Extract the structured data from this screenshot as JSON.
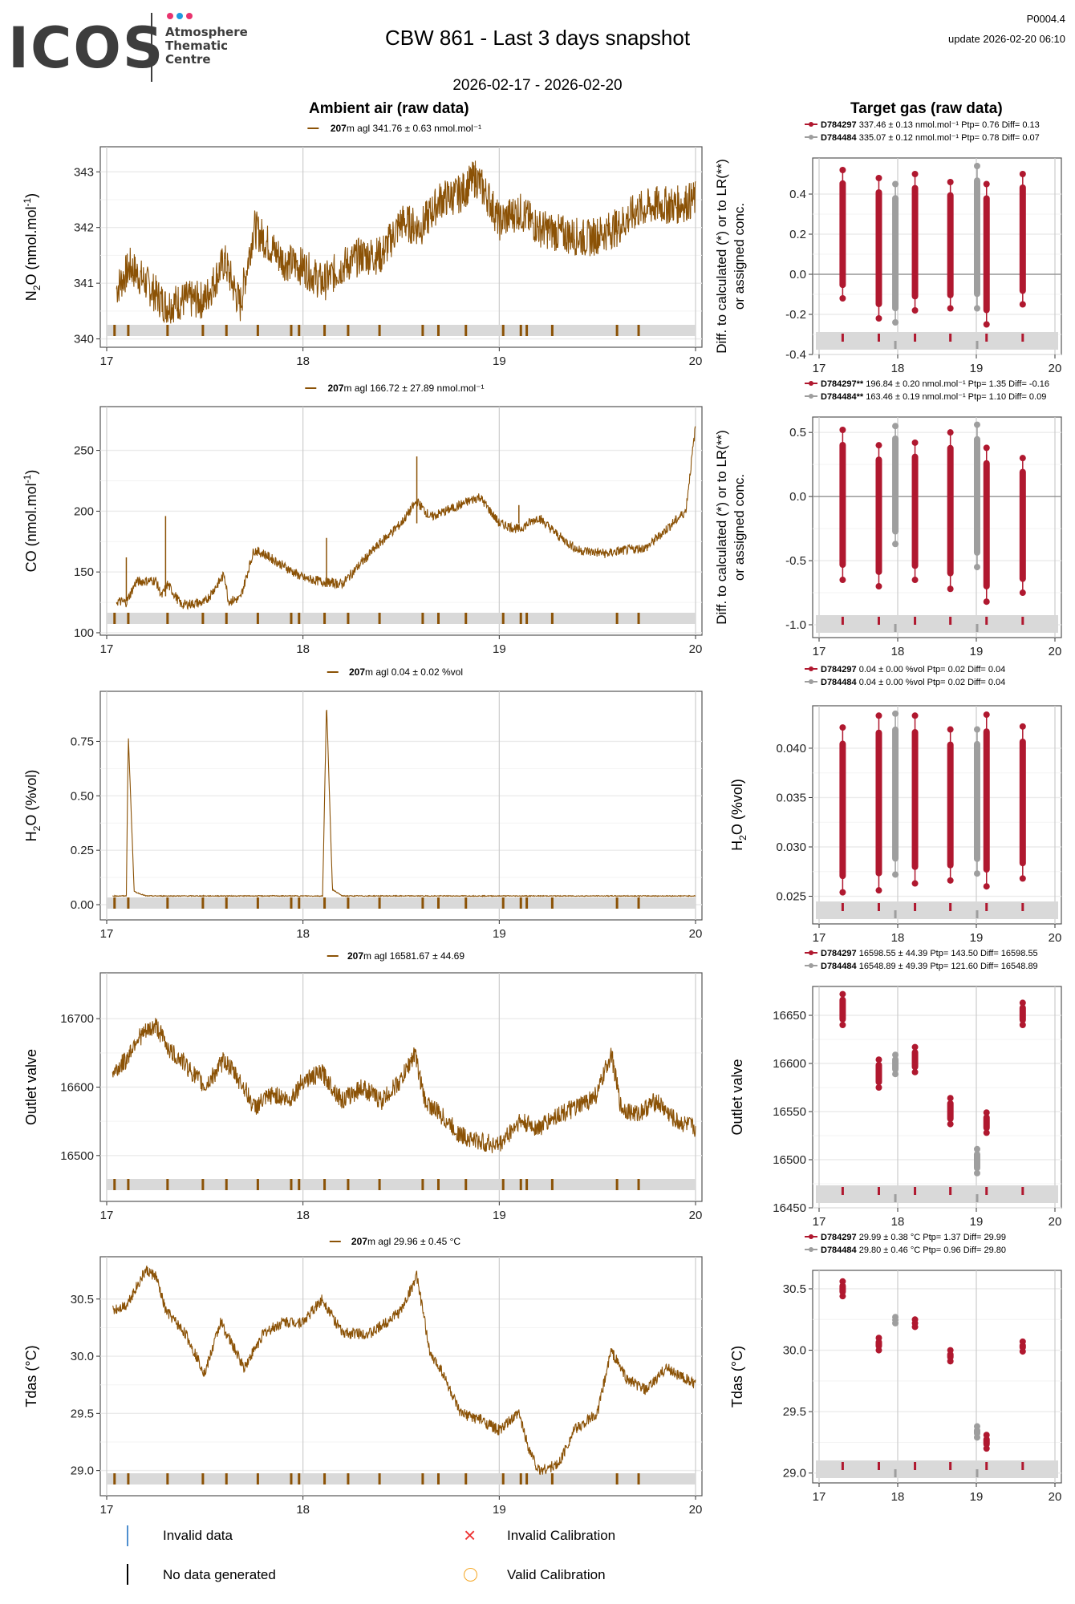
{
  "header": {
    "logo": {
      "name": "ICOS",
      "subtitle_lines": [
        "Atmosphere",
        "Thematic",
        "Centre"
      ],
      "dot_colors": [
        "#e8336e",
        "#1f9ae0",
        "#e8336e"
      ]
    },
    "title": "CBW 861 - Last 3 days snapshot",
    "date_range": "2026-02-17 - 2026-02-20",
    "version": "P0004.4",
    "update": "update  2026-02-20 06:10"
  },
  "columns": {
    "ambient_title": "Ambient air (raw data)",
    "target_title": "Target gas (raw data)"
  },
  "colors": {
    "ambient_series": "#8b5206",
    "target_primary": "#b0182f",
    "target_secondary": "#9e9e9e",
    "flag_band": "#d9d9d9",
    "invalid_data": "#4f8fcf",
    "no_data": "#000000",
    "invalid_calibration": "#ee3333",
    "valid_calibration": "#f5a623"
  },
  "chart_data": [
    {
      "id": "n2o-ambient",
      "type": "line",
      "ylabel": "N2O (nmol.mol-1)",
      "xlabel": "",
      "xlim": [
        17,
        20
      ],
      "ylim": [
        339.85,
        343.45
      ],
      "xticks": [
        "17",
        "18",
        "19",
        "20"
      ],
      "yticks": [
        340,
        341,
        342,
        343
      ],
      "legend": {
        "bold": "207",
        "text": "m agl 341.76 ± 0.63 nmol.mol⁻¹"
      },
      "x": [
        17.05,
        17.12,
        17.2,
        17.3,
        17.4,
        17.5,
        17.6,
        17.68,
        17.75,
        17.8,
        17.9,
        18.0,
        18.1,
        18.2,
        18.3,
        18.4,
        18.5,
        18.6,
        18.7,
        18.8,
        18.88,
        18.95,
        19.0,
        19.1,
        19.2,
        19.3,
        19.45,
        19.6,
        19.7,
        19.8,
        19.9,
        20.0
      ],
      "y": [
        340.9,
        341.3,
        341.0,
        340.6,
        340.7,
        340.7,
        341.4,
        340.6,
        342.0,
        341.8,
        341.4,
        341.3,
        341.0,
        341.3,
        341.5,
        341.5,
        342.1,
        342.0,
        342.5,
        342.6,
        342.9,
        342.5,
        342.1,
        342.3,
        342.0,
        341.9,
        341.8,
        342.0,
        342.3,
        342.4,
        342.4,
        342.5
      ],
      "noise": 0.35,
      "flags": [
        17.04,
        17.11,
        17.31,
        17.49,
        17.61,
        17.77,
        17.94,
        17.98,
        18.11,
        18.23,
        18.39,
        18.61,
        18.69,
        18.83,
        19.02,
        19.11,
        19.14,
        19.27,
        19.6,
        19.71
      ]
    },
    {
      "id": "co-ambient",
      "type": "line",
      "ylabel": "CO (nmol.mol-1)",
      "xlabel": "",
      "xlim": [
        17,
        20
      ],
      "ylim": [
        98,
        286
      ],
      "xticks": [
        "17",
        "18",
        "19",
        "20"
      ],
      "yticks": [
        100,
        150,
        200,
        250
      ],
      "legend": {
        "bold": "207",
        "text": "m agl 166.72 ± 27.89 nmol.mol⁻¹"
      },
      "x": [
        17.05,
        17.1,
        17.15,
        17.25,
        17.28,
        17.31,
        17.38,
        17.5,
        17.6,
        17.62,
        17.68,
        17.75,
        17.8,
        17.95,
        18.0,
        18.1,
        18.2,
        18.3,
        18.4,
        18.5,
        18.58,
        18.65,
        18.8,
        18.9,
        19.0,
        19.1,
        19.2,
        19.3,
        19.4,
        19.55,
        19.6,
        19.75,
        19.85,
        19.95,
        20.0
      ],
      "y": [
        126,
        125,
        142,
        143,
        130,
        140,
        123,
        125,
        148,
        126,
        128,
        168,
        165,
        150,
        145,
        142,
        140,
        158,
        175,
        190,
        208,
        195,
        205,
        212,
        190,
        185,
        195,
        180,
        168,
        165,
        167,
        170,
        185,
        200,
        270
      ],
      "noise": 4,
      "spikes": [
        [
          17.1,
          162
        ],
        [
          17.3,
          196
        ],
        [
          18.12,
          178
        ],
        [
          18.58,
          245
        ],
        [
          19.1,
          205
        ]
      ],
      "flags": [
        17.04,
        17.11,
        17.31,
        17.49,
        17.61,
        17.77,
        17.94,
        17.98,
        18.11,
        18.23,
        18.39,
        18.61,
        18.69,
        18.83,
        19.02,
        19.11,
        19.14,
        19.27,
        19.6,
        19.71
      ]
    },
    {
      "id": "h2o-ambient",
      "type": "line",
      "ylabel": "H2O (%vol)",
      "xlabel": "",
      "xlim": [
        17,
        20
      ],
      "ylim": [
        -0.07,
        0.98
      ],
      "xticks": [
        "17",
        "18",
        "19",
        "20"
      ],
      "yticks": [
        0.0,
        0.25,
        0.5,
        0.75
      ],
      "ytick_labels": [
        "0.00",
        "0.25",
        "0.50",
        "0.75"
      ],
      "legend": {
        "bold": "207",
        "text": "m agl 0.04 ± 0.02 %vol"
      },
      "x": [
        17.03,
        17.1,
        17.11,
        17.14,
        17.2,
        18.1,
        18.12,
        18.15,
        18.2,
        20.0
      ],
      "y": [
        0.04,
        0.04,
        0.78,
        0.06,
        0.04,
        0.04,
        0.93,
        0.07,
        0.04,
        0.04
      ],
      "noise": 0.002,
      "flags": [
        17.04,
        17.11,
        17.31,
        17.49,
        17.61,
        17.77,
        17.94,
        17.98,
        18.11,
        18.23,
        18.39,
        18.61,
        18.69,
        18.83,
        19.02,
        19.11,
        19.14,
        19.27,
        19.6,
        19.71
      ]
    },
    {
      "id": "outlet-ambient",
      "type": "line",
      "ylabel": "Outlet valve",
      "xlabel": "",
      "xlim": [
        17,
        20
      ],
      "ylim": [
        16433,
        16767
      ],
      "xticks": [
        "17",
        "18",
        "19",
        "20"
      ],
      "yticks": [
        16500,
        16600,
        16700
      ],
      "legend": {
        "bold": "207",
        "text": "m agl 16581.67 ± 44.69"
      },
      "x": [
        17.03,
        17.1,
        17.15,
        17.25,
        17.33,
        17.38,
        17.5,
        17.6,
        17.7,
        17.75,
        17.85,
        17.93,
        18.0,
        18.1,
        18.2,
        18.3,
        18.4,
        18.5,
        18.57,
        18.62,
        18.7,
        18.8,
        18.9,
        19.0,
        19.1,
        19.2,
        19.3,
        19.4,
        19.5,
        19.57,
        19.62,
        19.7,
        19.8,
        19.9,
        20.0
      ],
      "y": [
        16620,
        16640,
        16670,
        16690,
        16650,
        16640,
        16600,
        16640,
        16600,
        16570,
        16590,
        16580,
        16610,
        16620,
        16580,
        16600,
        16580,
        16610,
        16650,
        16580,
        16560,
        16530,
        16520,
        16515,
        16550,
        16540,
        16560,
        16570,
        16590,
        16650,
        16570,
        16560,
        16580,
        16550,
        16540
      ],
      "noise": 14,
      "flags": [
        17.04,
        17.11,
        17.31,
        17.49,
        17.61,
        17.77,
        17.94,
        17.98,
        18.11,
        18.23,
        18.39,
        18.61,
        18.69,
        18.83,
        19.02,
        19.11,
        19.14,
        19.27,
        19.6,
        19.71
      ]
    },
    {
      "id": "tdas-ambient",
      "type": "line",
      "ylabel": "Tdas (°C)",
      "xlabel": "",
      "xlim": [
        17,
        20
      ],
      "ylim": [
        28.78,
        30.87
      ],
      "xticks": [
        "17",
        "18",
        "19",
        "20"
      ],
      "yticks": [
        29.0,
        29.5,
        30.0,
        30.5
      ],
      "ytick_labels": [
        "29.0",
        "29.5",
        "30.0",
        "30.5"
      ],
      "legend": {
        "bold": "207",
        "text": "m agl 29.96 ± 0.45 °C"
      },
      "x": [
        17.03,
        17.1,
        17.2,
        17.25,
        17.3,
        17.4,
        17.5,
        17.58,
        17.7,
        17.8,
        17.9,
        18.0,
        18.1,
        18.2,
        18.35,
        18.5,
        18.58,
        18.65,
        18.7,
        18.8,
        18.9,
        19.0,
        19.1,
        19.15,
        19.2,
        19.3,
        19.38,
        19.5,
        19.57,
        19.65,
        19.75,
        19.85,
        19.9,
        20.0
      ],
      "y": [
        30.4,
        30.45,
        30.75,
        30.7,
        30.4,
        30.2,
        29.85,
        30.3,
        29.9,
        30.2,
        30.3,
        30.3,
        30.5,
        30.2,
        30.2,
        30.4,
        30.7,
        30.0,
        29.9,
        29.5,
        29.45,
        29.35,
        29.5,
        29.2,
        29.0,
        29.05,
        29.35,
        29.5,
        30.05,
        29.8,
        29.7,
        29.9,
        29.85,
        29.75
      ],
      "noise": 0.05,
      "flags": [
        17.04,
        17.11,
        17.31,
        17.49,
        17.61,
        17.77,
        17.94,
        17.98,
        18.11,
        18.23,
        18.39,
        18.61,
        18.69,
        18.83,
        19.02,
        19.11,
        19.14,
        19.27,
        19.6,
        19.71
      ]
    },
    {
      "id": "n2o-target",
      "type": "scatter",
      "ylabel": "Diff. to calculated (*) or to LR(**) or assigned conc.",
      "xlim": [
        17,
        20
      ],
      "ylim": [
        -0.4,
        0.58
      ],
      "xticks": [
        "17",
        "18",
        "19",
        "20"
      ],
      "yticks": [
        -0.4,
        -0.2,
        0.0,
        0.2,
        0.4
      ],
      "ytick_labels": [
        "-0.4",
        "-0.2",
        "0.0",
        "0.2",
        "0.4"
      ],
      "zero_line": true,
      "series": [
        {
          "name": "D784297",
          "legend": " 337.46 ± 0.13 nmol.mol⁻¹ Ptp= 0.76 Diff= 0.13",
          "x": [
            17.3,
            17.76,
            18.22,
            18.67,
            19.13,
            19.59
          ],
          "ymin": [
            -0.12,
            -0.22,
            -0.18,
            -0.17,
            -0.25,
            -0.15
          ],
          "ymax": [
            0.52,
            0.48,
            0.5,
            0.46,
            0.45,
            0.5
          ]
        },
        {
          "name": "D784484",
          "legend": " 335.07 ± 0.12 nmol.mol⁻¹ Ptp= 0.78 Diff= 0.07",
          "x": [
            17.97,
            19.01
          ],
          "ymin": [
            -0.24,
            -0.17
          ],
          "ymax": [
            0.45,
            0.54
          ]
        }
      ]
    },
    {
      "id": "co-target",
      "type": "scatter",
      "ylabel": "Diff. to calculated (*) or to LR(**) or assigned conc.",
      "xlim": [
        17,
        20
      ],
      "ylim": [
        -1.1,
        0.62
      ],
      "xticks": [
        "17",
        "18",
        "19",
        "20"
      ],
      "yticks": [
        -1.0,
        -0.5,
        0.0,
        0.5
      ],
      "ytick_labels": [
        "-1.0",
        "-0.5",
        "0.0",
        "0.5"
      ],
      "zero_line": true,
      "series": [
        {
          "name": "D784297**",
          "legend": " 196.84 ± 0.20 nmol.mol⁻¹ Ptp= 1.35 Diff= -0.16",
          "x": [
            17.3,
            17.76,
            18.22,
            18.67,
            19.13,
            19.59
          ],
          "ymin": [
            -0.65,
            -0.7,
            -0.65,
            -0.72,
            -0.82,
            -0.75
          ],
          "ymax": [
            0.52,
            0.4,
            0.42,
            0.5,
            0.38,
            0.3
          ]
        },
        {
          "name": "D784484**",
          "legend": " 163.46 ± 0.19 nmol.mol⁻¹ Ptp= 1.10 Diff= 0.09",
          "x": [
            17.97,
            19.01
          ],
          "ymin": [
            -0.37,
            -0.55
          ],
          "ymax": [
            0.55,
            0.56
          ]
        }
      ]
    },
    {
      "id": "h2o-target",
      "type": "scatter",
      "ylabel": "H2O (%vol)",
      "xlim": [
        17,
        20
      ],
      "ylim": [
        0.0222,
        0.0443
      ],
      "xticks": [
        "17",
        "18",
        "19",
        "20"
      ],
      "yticks": [
        0.025,
        0.03,
        0.035,
        0.04
      ],
      "ytick_labels": [
        "0.025",
        "0.030",
        "0.035",
        "0.040"
      ],
      "series": [
        {
          "name": "D784297",
          "legend": " 0.04 ± 0.00 %vol Ptp= 0.02 Diff= 0.04",
          "x": [
            17.3,
            17.76,
            18.22,
            18.67,
            19.13,
            19.59
          ],
          "ymin": [
            0.0254,
            0.0256,
            0.0263,
            0.0266,
            0.026,
            0.0268
          ],
          "ymax": [
            0.0421,
            0.0433,
            0.0433,
            0.0419,
            0.0434,
            0.0422
          ]
        },
        {
          "name": "D784484",
          "legend": " 0.04 ± 0.00 %vol Ptp= 0.02 Diff= 0.04",
          "x": [
            17.97,
            19.01
          ],
          "ymin": [
            0.0272,
            0.0273
          ],
          "ymax": [
            0.0435,
            0.0419
          ]
        }
      ]
    },
    {
      "id": "outlet-target",
      "type": "scatter",
      "ylabel": "Outlet valve",
      "xlim": [
        17,
        20
      ],
      "ylim": [
        16450,
        16680
      ],
      "xticks": [
        "17",
        "18",
        "19",
        "20"
      ],
      "yticks": [
        16450,
        16500,
        16550,
        16600,
        16650
      ],
      "series": [
        {
          "name": "D784297",
          "legend": " 16598.55 ± 44.39  Ptp= 143.50 Diff= 16598.55",
          "x": [
            17.3,
            17.76,
            18.22,
            18.67,
            19.13,
            19.59
          ],
          "ymin": [
            16640,
            16575,
            16591,
            16537,
            16528,
            16640
          ],
          "ymax": [
            16672,
            16604,
            16617,
            16564,
            16549,
            16663
          ]
        },
        {
          "name": "D784484",
          "legend": " 16548.89 ± 49.39  Ptp= 121.60 Diff= 16548.89",
          "x": [
            17.97,
            19.01
          ],
          "ymin": [
            16589,
            16486
          ],
          "ymax": [
            16609,
            16511
          ]
        }
      ]
    },
    {
      "id": "tdas-target",
      "type": "scatter",
      "ylabel": "Tdas (°C)",
      "xlim": [
        17,
        20
      ],
      "ylim": [
        28.92,
        30.65
      ],
      "xticks": [
        "17",
        "18",
        "19",
        "20"
      ],
      "yticks": [
        29.0,
        29.5,
        30.0,
        30.5
      ],
      "ytick_labels": [
        "29.0",
        "29.5",
        "30.0",
        "30.5"
      ],
      "series": [
        {
          "name": "D784297",
          "legend": " 29.99 ± 0.38 °C Ptp= 1.37 Diff= 29.99",
          "x": [
            17.3,
            17.76,
            18.22,
            18.67,
            19.13,
            19.59
          ],
          "ymin": [
            30.44,
            30.0,
            30.19,
            29.91,
            29.2,
            29.99
          ],
          "ymax": [
            30.56,
            30.1,
            30.25,
            30.0,
            29.31,
            30.07
          ]
        },
        {
          "name": "D784484",
          "legend": " 29.80 ± 0.46 °C Ptp= 0.96 Diff= 29.80",
          "x": [
            17.97,
            19.01
          ],
          "ymin": [
            30.22,
            29.29
          ],
          "ymax": [
            30.27,
            29.38
          ]
        }
      ]
    }
  ],
  "footer_legend": [
    {
      "symbol": "invalid-data-mark",
      "label": "Invalid data"
    },
    {
      "symbol": "invalid-calibration-mark",
      "label": "Invalid Calibration"
    },
    {
      "symbol": "no-data-mark",
      "label": "No data generated"
    },
    {
      "symbol": "valid-calibration-mark",
      "label": "Valid Calibration"
    }
  ]
}
